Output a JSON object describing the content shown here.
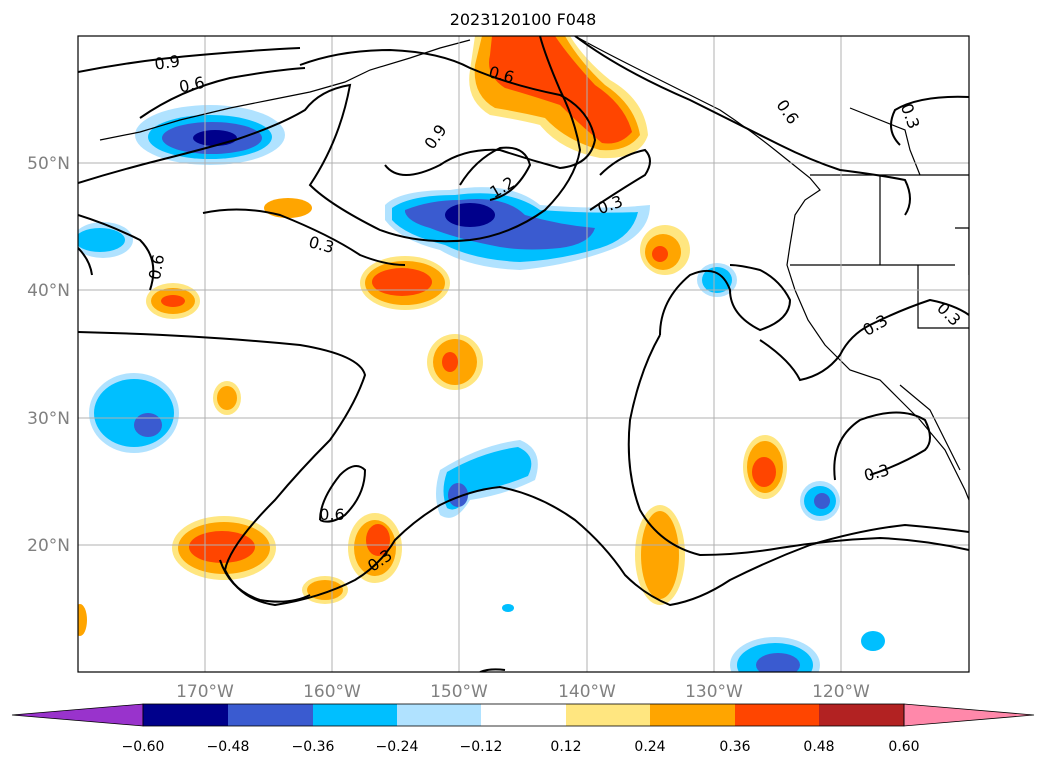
{
  "map": {
    "title": "2023120100 F048",
    "lon_labels": [
      "170°W",
      "160°W",
      "150°W",
      "140°W",
      "130°W",
      "120°W"
    ],
    "lat_labels": [
      "50°N",
      "40°N",
      "30°N",
      "20°N"
    ]
  },
  "contour_labels": [
    "0.9",
    "0.6",
    "0.6",
    "0.9",
    "1.2",
    "0.3",
    "0.3",
    "0.6",
    "0.6",
    "0.3",
    "0.3",
    "0.6",
    "0.3",
    "0.3",
    "0.3"
  ],
  "colorbar": {
    "ticks": [
      "−0.60",
      "−0.48",
      "−0.36",
      "−0.24",
      "−0.12",
      "0.12",
      "0.24",
      "0.36",
      "0.48",
      "0.60"
    ],
    "colors": [
      "#9933cc",
      "#00008b",
      "#3a5bd0",
      "#00bfff",
      "#b0e2ff",
      "#ffffff",
      "#ffe680",
      "#ffa500",
      "#ff4500",
      "#b22222",
      "#ff88aa"
    ]
  },
  "colors": {
    "neg1": "#b0e2ff",
    "neg2": "#00bfff",
    "neg3": "#3a5bd0",
    "neg4": "#00008b",
    "pos1": "#ffe680",
    "pos2": "#ffa500",
    "pos3": "#ff4500"
  }
}
